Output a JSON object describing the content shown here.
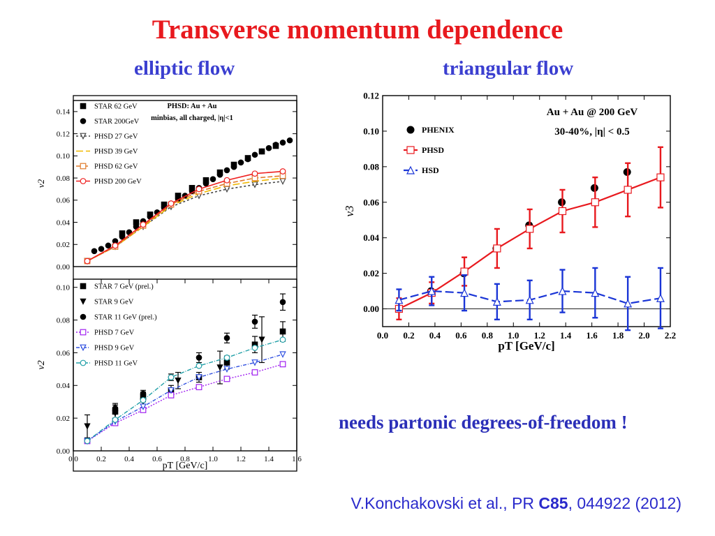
{
  "title": "Transverse momentum dependence",
  "subtitle_left": "elliptic flow",
  "subtitle_right": "triangular flow",
  "note": "needs partonic degrees-of-freedom !",
  "citation": {
    "pre": "V.Konchakovski et al., PR ",
    "bold": "C85",
    "post": ", 044922 (2012)"
  },
  "colors": {
    "title": "#e8191e",
    "subtitle": "#3b3fd0",
    "note": "#2b2fb8"
  },
  "chart_data": [
    {
      "type": "scatter",
      "panel": "left-top",
      "title": "",
      "xlabel": "",
      "ylabel": "v2",
      "xlim": [
        0.0,
        1.6
      ],
      "ylim": [
        0.0,
        0.15
      ],
      "yticks": [
        "0.00",
        "0.02",
        "0.04",
        "0.06",
        "0.08",
        "0.10",
        "0.12",
        "0.14"
      ],
      "annotation": [
        "PHSD: Au + Au",
        "minbias, all charged, |η|<1"
      ],
      "series": [
        {
          "name": "STAR 62 GeV",
          "kind": "points",
          "marker": "square",
          "color": "#000000",
          "x": [
            0.35,
            0.45,
            0.55,
            0.65,
            0.75,
            0.85,
            0.95,
            1.05,
            1.15,
            1.25,
            1.35,
            1.45
          ],
          "y": [
            0.03,
            0.04,
            0.047,
            0.056,
            0.064,
            0.071,
            0.078,
            0.085,
            0.092,
            0.098,
            0.104,
            0.109
          ]
        },
        {
          "name": "STAR 200GeV",
          "kind": "points",
          "marker": "circle",
          "color": "#000000",
          "x": [
            0.15,
            0.2,
            0.25,
            0.3,
            0.35,
            0.4,
            0.45,
            0.5,
            0.55,
            0.6,
            0.65,
            0.7,
            0.75,
            0.8,
            0.85,
            0.9,
            0.95,
            1.0,
            1.05,
            1.1,
            1.15,
            1.2,
            1.25,
            1.3,
            1.35,
            1.4,
            1.45,
            1.5,
            1.55
          ],
          "y": [
            0.014,
            0.016,
            0.019,
            0.023,
            0.027,
            0.031,
            0.036,
            0.041,
            0.045,
            0.049,
            0.053,
            0.057,
            0.061,
            0.064,
            0.068,
            0.071,
            0.075,
            0.079,
            0.083,
            0.087,
            0.09,
            0.094,
            0.097,
            0.101,
            0.104,
            0.107,
            0.11,
            0.112,
            0.114
          ]
        },
        {
          "name": "PHSD 27 GeV",
          "kind": "line",
          "dash": "3,3",
          "marker": "triangle-down-open",
          "color": "#444444",
          "x": [
            0.1,
            0.3,
            0.5,
            0.7,
            0.9,
            1.1,
            1.3,
            1.5
          ],
          "y": [
            0.005,
            0.018,
            0.036,
            0.054,
            0.064,
            0.07,
            0.074,
            0.077
          ]
        },
        {
          "name": "PHSD 39 GeV",
          "kind": "line",
          "dash": "10,4",
          "marker": "none",
          "color": "#f0b800",
          "x": [
            0.1,
            0.3,
            0.5,
            0.7,
            0.9,
            1.1,
            1.3,
            1.5
          ],
          "y": [
            0.005,
            0.018,
            0.036,
            0.055,
            0.066,
            0.073,
            0.077,
            0.08
          ]
        },
        {
          "name": "PHSD 62 GeV",
          "kind": "line",
          "dash": "7,3",
          "marker": "square-open",
          "color": "#e07a2a",
          "x": [
            0.1,
            0.3,
            0.5,
            0.7,
            0.9,
            1.1,
            1.3,
            1.5
          ],
          "y": [
            0.005,
            0.018,
            0.037,
            0.056,
            0.068,
            0.075,
            0.08,
            0.082
          ]
        },
        {
          "name": "PHSD 200 GeV",
          "kind": "line",
          "dash": "",
          "marker": "circle-open",
          "color": "#ef2020",
          "x": [
            0.1,
            0.3,
            0.5,
            0.7,
            0.9,
            1.1,
            1.3,
            1.5
          ],
          "y": [
            0.005,
            0.019,
            0.038,
            0.057,
            0.07,
            0.078,
            0.084,
            0.086
          ]
        }
      ]
    },
    {
      "type": "scatter",
      "panel": "left-bottom",
      "title": "",
      "xlabel": "pT [GeV/c]",
      "ylabel": "v2",
      "xlim": [
        0.0,
        1.6
      ],
      "ylim": [
        0.0,
        0.105
      ],
      "xticks": [
        "0.0",
        "0.2",
        "0.4",
        "0.6",
        "0.8",
        "1.0",
        "1.2",
        "1.4",
        "1.6"
      ],
      "yticks": [
        "0.00",
        "0.02",
        "0.04",
        "0.06",
        "0.08",
        "0.10"
      ],
      "series": [
        {
          "name": "STAR 7 GeV (prel.)",
          "kind": "points",
          "marker": "square",
          "color": "#000000",
          "x": [
            0.3,
            0.5,
            0.7,
            0.9,
            1.1,
            1.3,
            1.5
          ],
          "y": [
            0.024,
            0.033,
            0.037,
            0.045,
            0.054,
            0.065,
            0.073
          ],
          "err": [
            0.004,
            0.003,
            0.003,
            0.003,
            0.004,
            0.005,
            0.006
          ]
        },
        {
          "name": "STAR 9 GeV",
          "kind": "points",
          "marker": "triangle-down",
          "color": "#000000",
          "x": [
            0.1,
            0.3,
            0.5,
            0.75,
            1.05,
            1.35
          ],
          "y": [
            0.015,
            0.023,
            0.03,
            0.043,
            0.051,
            0.068
          ],
          "err": [
            0.007,
            0.006,
            0.004,
            0.005,
            0.01,
            0.014
          ]
        },
        {
          "name": "STAR 11 GeV (prel.)",
          "kind": "points",
          "marker": "circle",
          "color": "#000000",
          "x": [
            0.3,
            0.5,
            0.7,
            0.9,
            1.1,
            1.3,
            1.5
          ],
          "y": [
            0.026,
            0.035,
            0.045,
            0.057,
            0.069,
            0.079,
            0.091
          ],
          "err": [
            0.002,
            0.002,
            0.002,
            0.003,
            0.003,
            0.004,
            0.005
          ]
        },
        {
          "name": "PHSD 7 GeV",
          "kind": "line",
          "dash": "2,2",
          "marker": "square-open",
          "color": "#a020f0",
          "x": [
            0.1,
            0.3,
            0.5,
            0.7,
            0.9,
            1.1,
            1.3,
            1.5
          ],
          "y": [
            0.006,
            0.017,
            0.025,
            0.034,
            0.039,
            0.044,
            0.048,
            0.053
          ]
        },
        {
          "name": "PHSD 9 GeV",
          "kind": "line",
          "dash": "5,2,1,2",
          "marker": "triangle-down-open",
          "color": "#3050e0",
          "x": [
            0.1,
            0.3,
            0.5,
            0.7,
            0.9,
            1.1,
            1.3,
            1.5
          ],
          "y": [
            0.006,
            0.018,
            0.027,
            0.037,
            0.045,
            0.05,
            0.054,
            0.059
          ]
        },
        {
          "name": "PHSD 11 GeV",
          "kind": "line",
          "dash": "6,2,1,2",
          "marker": "circle-open",
          "color": "#22a0a8",
          "x": [
            0.1,
            0.3,
            0.5,
            0.7,
            0.9,
            1.1,
            1.3,
            1.5
          ],
          "y": [
            0.006,
            0.019,
            0.031,
            0.045,
            0.052,
            0.057,
            0.063,
            0.068
          ]
        }
      ]
    },
    {
      "type": "scatter",
      "panel": "right",
      "title": "",
      "xlabel": "pT [GeV/c]",
      "ylabel": "v3",
      "xlim": [
        0.0,
        2.2
      ],
      "ylim": [
        -0.01,
        0.12
      ],
      "xticks": [
        "0.0",
        "0.2",
        "0.4",
        "0.6",
        "0.8",
        "1.0",
        "1.2",
        "1.4",
        "1.6",
        "1.8",
        "2.0",
        "2.2"
      ],
      "yticks": [
        "0.00",
        "0.02",
        "0.04",
        "0.06",
        "0.08",
        "0.10",
        "0.12"
      ],
      "annotation": [
        "Au + Au @ 200 GeV",
        "30-40%, |η| < 0.5"
      ],
      "series": [
        {
          "name": "PHENIX",
          "kind": "points",
          "marker": "circle",
          "color": "#000000",
          "x": [
            0.37,
            0.62,
            0.87,
            1.12,
            1.37,
            1.62,
            1.87
          ],
          "y": [
            0.01,
            0.02,
            0.034,
            0.047,
            0.06,
            0.068,
            0.077
          ]
        },
        {
          "name": "PHSD",
          "kind": "line",
          "dash": "",
          "marker": "square-open",
          "color": "#e8191e",
          "x": [
            0.125,
            0.375,
            0.625,
            0.875,
            1.125,
            1.375,
            1.625,
            1.875,
            2.125
          ],
          "y": [
            0.0,
            0.009,
            0.021,
            0.034,
            0.045,
            0.055,
            0.06,
            0.067,
            0.074
          ],
          "err": [
            0.006,
            0.006,
            0.008,
            0.011,
            0.011,
            0.012,
            0.014,
            0.015,
            0.017
          ]
        },
        {
          "name": "HSD",
          "kind": "line",
          "dash": "12,5",
          "marker": "triangle-up-open",
          "color": "#1a35d6",
          "x": [
            0.125,
            0.375,
            0.625,
            0.875,
            1.125,
            1.375,
            1.625,
            1.875,
            2.125
          ],
          "y": [
            0.005,
            0.01,
            0.009,
            0.004,
            0.005,
            0.01,
            0.009,
            0.003,
            0.006
          ],
          "err": [
            0.006,
            0.008,
            0.01,
            0.01,
            0.011,
            0.012,
            0.014,
            0.015,
            0.017
          ]
        }
      ]
    }
  ]
}
